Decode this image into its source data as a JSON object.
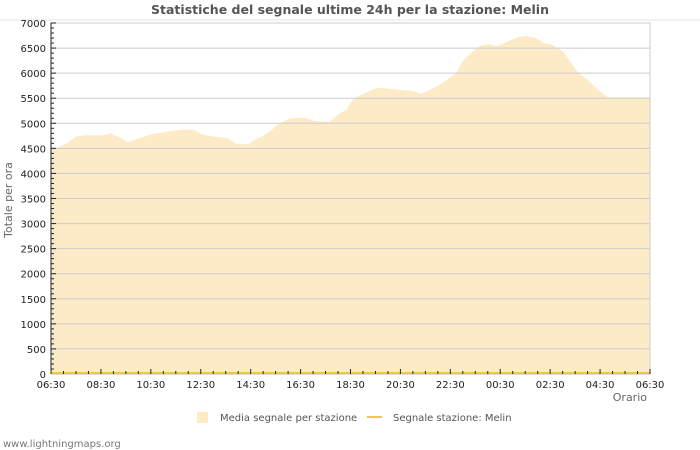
{
  "page": {
    "footer_text": "www.lightningmaps.org"
  },
  "chart_data": {
    "type": "area",
    "title": "Statistiche del segnale ultime 24h per la stazione: Melin",
    "xlabel": "Orario",
    "ylabel": "Totale per ora",
    "ylim": [
      0,
      7000
    ],
    "yticks": [
      0,
      500,
      1000,
      1500,
      2000,
      2500,
      3000,
      3500,
      4000,
      4500,
      5000,
      5500,
      6000,
      6500,
      7000
    ],
    "xtick_labels": [
      "06:30",
      "08:30",
      "10:30",
      "12:30",
      "14:30",
      "16:30",
      "18:30",
      "20:30",
      "22:30",
      "00:30",
      "02:30",
      "04:30",
      "06:30"
    ],
    "grid": true,
    "legend_position": "bottom",
    "colors": {
      "area_fill": "#fdebc8",
      "station_line": "#f5c842",
      "grid": "#cccccc",
      "frame": "#cccccc"
    },
    "series": [
      {
        "name": "Media segnale per stazione",
        "kind": "area",
        "x_hours": [
          0,
          0.2,
          0.45,
          0.7,
          0.95,
          1.2,
          1.5,
          1.7,
          2.0,
          2.2,
          2.5,
          2.85,
          3.2,
          3.35,
          3.75,
          4.05,
          4.3,
          4.65,
          5.0,
          5.25,
          5.6,
          5.85,
          5.95,
          6.2,
          6.45,
          6.8,
          7.2,
          7.5,
          7.9,
          8.2,
          8.4,
          8.5,
          8.7,
          9.1,
          9.25,
          9.6,
          10.0,
          10.25,
          10.5,
          10.7,
          10.95,
          11.2,
          11.5,
          11.7,
          11.95,
          12.2,
          12.45,
          12.65,
          13.0,
          13.25,
          13.5,
          13.75,
          14.0,
          14.25,
          14.55,
          14.75,
          15.0,
          15.25,
          15.55,
          15.8,
          16.05,
          16.3,
          16.55,
          16.8,
          17.0
        ],
        "values": [
          4500,
          4520,
          4600,
          4730,
          4760,
          4760,
          4760,
          4800,
          4700,
          4620,
          4700,
          4780,
          4820,
          4840,
          4870,
          4870,
          4770,
          4730,
          4710,
          4590,
          4580,
          4700,
          4720,
          4830,
          4990,
          5100,
          5110,
          5040,
          5030,
          5200,
          5280,
          5420,
          5540,
          5660,
          5710,
          5690,
          5660,
          5650,
          5590,
          5650,
          5740,
          5850,
          6000,
          6260,
          6420,
          6560,
          6580,
          6540,
          6640,
          6720,
          6740,
          6700,
          6600,
          6560,
          6420,
          6220,
          5980,
          5860,
          5660,
          5520,
          5520,
          5520,
          5520,
          5520,
          5520
        ]
      },
      {
        "name": "Segnale stazione: Melin",
        "kind": "line",
        "values_constant": 0
      }
    ]
  }
}
